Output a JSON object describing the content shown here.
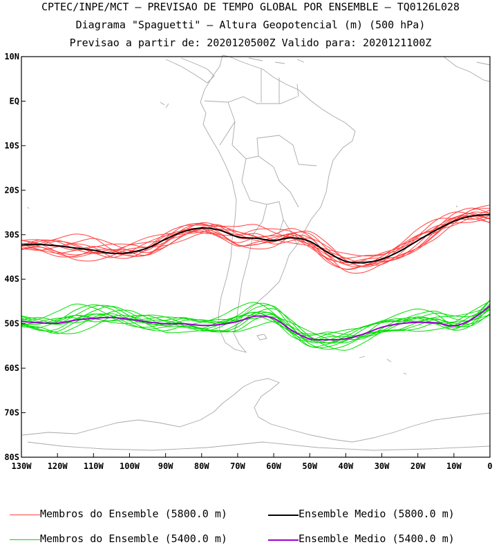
{
  "header": {
    "line1": "CPTEC/INPE/MCT — PREVISAO DE TEMPO GLOBAL POR ENSEMBLE — TQ0126L028",
    "line2": "Diagrama \"Spaguetti\" — Altura Geopotencial (m) (500 hPa)",
    "line3": "Previsao a partir de: 2020120500Z  Valido para: 2020121100Z"
  },
  "legend": {
    "members_5800": "Membros do Ensemble (5800.0 m)",
    "mean_5800": "Ensemble Medio (5800.0 m)",
    "members_5400": "Membros do Ensemble (5400.0 m)",
    "mean_5400": "Ensemble Medio (5400.0 m)"
  },
  "chart_data": {
    "type": "line",
    "title": "Diagrama \"Spaguetti\" — Altura Geopotencial (m) (500 hPa)",
    "xlim": [
      -130,
      0
    ],
    "ylim": [
      -80,
      10
    ],
    "x_ticks": [
      {
        "value": -130,
        "label": "130W"
      },
      {
        "value": -120,
        "label": "120W"
      },
      {
        "value": -110,
        "label": "110W"
      },
      {
        "value": -100,
        "label": "100W"
      },
      {
        "value": -90,
        "label": "90W"
      },
      {
        "value": -80,
        "label": "80W"
      },
      {
        "value": -70,
        "label": "70W"
      },
      {
        "value": -60,
        "label": "60W"
      },
      {
        "value": -50,
        "label": "50W"
      },
      {
        "value": -40,
        "label": "40W"
      },
      {
        "value": -30,
        "label": "30W"
      },
      {
        "value": -20,
        "label": "20W"
      },
      {
        "value": -10,
        "label": "10W"
      },
      {
        "value": 0,
        "label": "0"
      }
    ],
    "y_ticks": [
      {
        "value": 10,
        "label": "10N"
      },
      {
        "value": 0,
        "label": "EQ"
      },
      {
        "value": -10,
        "label": "10S"
      },
      {
        "value": -20,
        "label": "20S"
      },
      {
        "value": -30,
        "label": "30S"
      },
      {
        "value": -40,
        "label": "40S"
      },
      {
        "value": -50,
        "label": "50S"
      },
      {
        "value": -60,
        "label": "60S"
      },
      {
        "value": -70,
        "label": "70S"
      },
      {
        "value": -80,
        "label": "80S"
      }
    ],
    "colors": {
      "members_5800": "#ff4040",
      "mean_5800": "#000000",
      "members_5400": "#00dd00",
      "mean_5400": "#9900cc",
      "map": "#a8a8a8"
    },
    "x": [
      -130,
      -125,
      -120,
      -115,
      -110,
      -105,
      -100,
      -95,
      -90,
      -85,
      -80,
      -75,
      -70,
      -65,
      -60,
      -55,
      -50,
      -45,
      -40,
      -35,
      -30,
      -25,
      -20,
      -15,
      -10,
      -5,
      0
    ],
    "series": [
      {
        "name": "Ensemble Medio (5800.0 m)",
        "values": [
          -32.3,
          -32.2,
          -32.5,
          -33.0,
          -33.5,
          -34.2,
          -34.0,
          -33.0,
          -31.0,
          -29.3,
          -28.5,
          -29.0,
          -30.5,
          -30.8,
          -31.3,
          -30.7,
          -31.5,
          -34.0,
          -36.0,
          -36.3,
          -35.5,
          -33.7,
          -31.3,
          -29.0,
          -27.0,
          -25.8,
          -25.5
        ]
      },
      {
        "name": "Ensemble Medio (5400.0 m)",
        "values": [
          -49.5,
          -49.8,
          -49.9,
          -49.2,
          -48.8,
          -48.6,
          -49.0,
          -49.6,
          -50.0,
          -50.0,
          -50.4,
          -50.2,
          -49.5,
          -48.3,
          -48.8,
          -51.5,
          -53.4,
          -53.6,
          -53.4,
          -52.3,
          -50.8,
          -50.0,
          -49.7,
          -49.8,
          -50.5,
          -49.0,
          -46.0
        ]
      },
      {
        "name": "Membros do Ensemble (5800.0 m)",
        "member_offsets": [
          -1.8,
          -1.2,
          -0.7,
          -0.3,
          0.2,
          0.6,
          1.0,
          1.5,
          2.0,
          -1.5,
          1.2,
          -0.9
        ],
        "member_phase": [
          0.0,
          0.6,
          1.3,
          2.1,
          2.8,
          3.5,
          4.2,
          5.0,
          5.7,
          0.9,
          3.1,
          4.6
        ]
      },
      {
        "name": "Membros do Ensemble (5400.0 m)",
        "member_offsets": [
          -2.0,
          -1.4,
          -0.8,
          -0.3,
          0.3,
          0.8,
          1.3,
          1.8,
          2.3,
          -1.0,
          0.6,
          1.6
        ],
        "member_phase": [
          0.3,
          1.0,
          1.7,
          2.4,
          3.0,
          3.8,
          4.5,
          5.3,
          6.0,
          1.4,
          2.6,
          4.9
        ]
      }
    ]
  }
}
